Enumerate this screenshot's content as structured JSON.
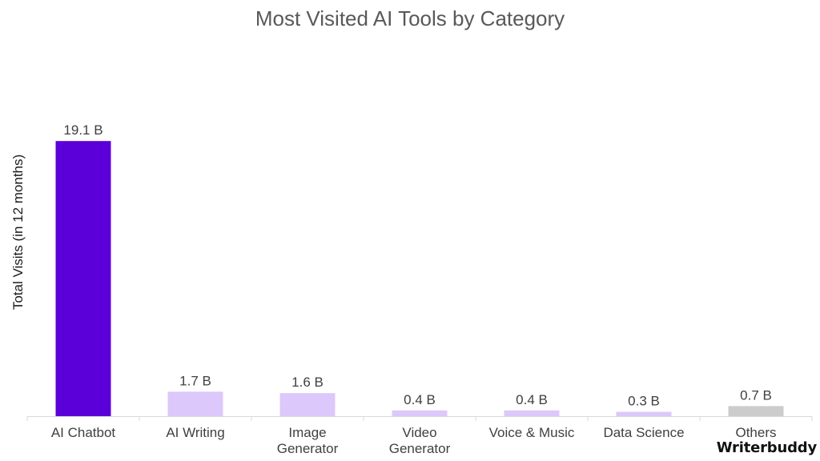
{
  "chart_data": {
    "type": "bar",
    "title": "Most Visited AI Tools by Category",
    "ylabel": "Total Visits (in 12 months)",
    "xlabel": "",
    "categories": [
      [
        "AI Chatbot"
      ],
      [
        "AI Writing"
      ],
      [
        "Image",
        "Generator"
      ],
      [
        "Video",
        "Generator"
      ],
      [
        "Voice & Music"
      ],
      [
        "Data Science"
      ],
      [
        "Others"
      ]
    ],
    "values": [
      19.1,
      1.7,
      1.6,
      0.4,
      0.4,
      0.3,
      0.7
    ],
    "value_labels": [
      "19.1 B",
      "1.7 B",
      "1.6 B",
      "0.4 B",
      "0.4 B",
      "0.3 B",
      "0.7 B"
    ],
    "unit": "B",
    "ylim": [
      0,
      21
    ],
    "grid": false,
    "legend": "none",
    "colors": [
      "#5b00d9",
      "#dcc8fa",
      "#dcc8fa",
      "#dcc8fa",
      "#dcc8fa",
      "#dcc8fa",
      "#cccccc"
    ]
  },
  "brand": {
    "logo_text": "Writerbuddy"
  }
}
